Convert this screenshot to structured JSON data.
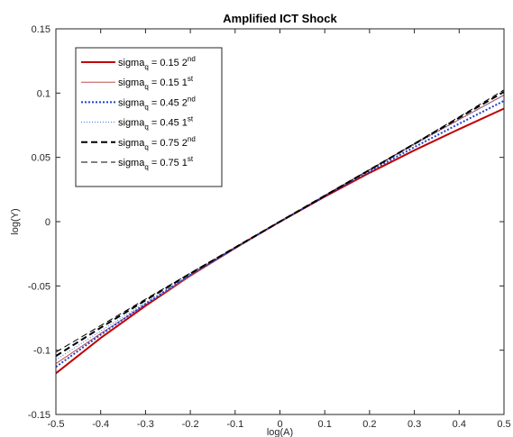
{
  "chart_data": {
    "type": "line",
    "title": "Amplified ICT Shock",
    "xlabel": "log(A)",
    "ylabel": "log(Y)",
    "xlim": [
      -0.5,
      0.5
    ],
    "ylim": [
      -0.15,
      0.15
    ],
    "xticks": [
      "-0.5",
      "-0.4",
      "-0.3",
      "-0.2",
      "-0.1",
      "0",
      "0.1",
      "0.2",
      "0.3",
      "0.4",
      "0.5"
    ],
    "yticks": [
      "0.15",
      "0.1",
      "0.05",
      "0",
      "-0.05",
      "-0.1",
      "-0.15"
    ],
    "grid": false,
    "legend_position": "top-left",
    "x": [
      -0.5,
      -0.4,
      -0.3,
      -0.2,
      -0.1,
      0,
      0.1,
      0.2,
      0.3,
      0.4,
      0.5
    ],
    "series": [
      {
        "legend_base": "sigma",
        "legend_sub": "q",
        "legend_value": " = 0.15 2",
        "legend_sup": "nd",
        "color": "#c00000",
        "style": "solid",
        "width": 2,
        "values": [
          -0.118,
          -0.0905,
          -0.0655,
          -0.042,
          -0.0205,
          0,
          0.0195,
          0.038,
          0.0555,
          0.072,
          0.088
        ]
      },
      {
        "legend_base": "sigma",
        "legend_sub": "q",
        "legend_value": " = 0.15 1",
        "legend_sup": "st",
        "color": "#c0504d",
        "style": "solid",
        "width": 1,
        "values": [
          -0.1105,
          -0.087,
          -0.0645,
          -0.0425,
          -0.021,
          0,
          0.0205,
          0.0405,
          0.0605,
          0.0795,
          0.0985
        ]
      },
      {
        "legend_base": "sigma",
        "legend_sub": "q",
        "legend_value": " = 0.45 2",
        "legend_sup": "nd",
        "color": "#1f3fcf",
        "style": "dotted",
        "width": 2,
        "values": [
          -0.113,
          -0.088,
          -0.064,
          -0.0415,
          -0.0205,
          0,
          0.0198,
          0.0392,
          0.058,
          0.0762,
          0.094
        ]
      },
      {
        "legend_base": "sigma",
        "legend_sub": "q",
        "legend_value": " = 0.45 1",
        "legend_sup": "st",
        "color": "#2f6fdf",
        "style": "dotted",
        "width": 1,
        "values": [
          -0.1075,
          -0.085,
          -0.063,
          -0.0415,
          -0.0205,
          0,
          0.0203,
          0.0402,
          0.0598,
          0.0792,
          0.0984
        ]
      },
      {
        "legend_base": "sigma",
        "legend_sub": "q",
        "legend_value": " = 0.75 2",
        "legend_sup": "nd",
        "color": "#000000",
        "style": "dashed",
        "width": 2,
        "values": [
          -0.1045,
          -0.0825,
          -0.0612,
          -0.0404,
          -0.0201,
          0,
          0.0201,
          0.0402,
          0.0605,
          0.0808,
          0.101
        ]
      },
      {
        "legend_base": "sigma",
        "legend_sub": "q",
        "legend_value": " = 0.75 1",
        "legend_sup": "st",
        "color": "#000000",
        "style": "dashed",
        "width": 1,
        "values": [
          -0.1015,
          -0.0808,
          -0.0603,
          -0.04,
          -0.02,
          0,
          0.0201,
          0.0403,
          0.0608,
          0.0815,
          0.1025
        ]
      }
    ]
  }
}
